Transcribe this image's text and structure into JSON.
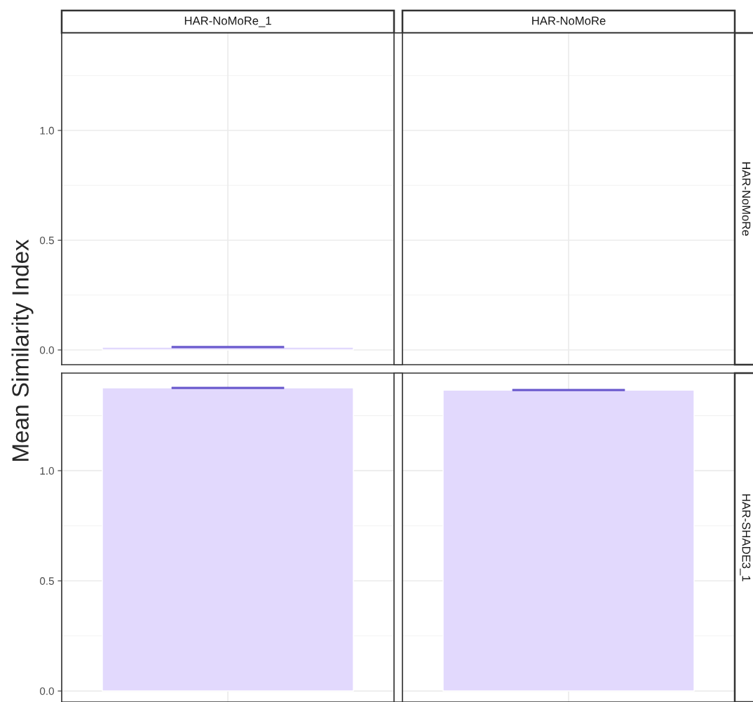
{
  "chart_data": [
    {
      "type": "bar",
      "ylabel": "Mean Similarity Index",
      "y2label": "HAR-NoMoRe",
      "categories": [
        "HAR-NoMoRe_1",
        "HAR-NoMoRe"
      ],
      "series": [
        {
          "color": "#e2d9fd",
          "values": [
            0.013,
            null
          ],
          "errors": [
            0,
            null
          ]
        }
      ],
      "ylim": [
        -0.067,
        1.444
      ],
      "yticks": [
        {
          "value": 0,
          "label": "0.0"
        },
        {
          "value": 0.5,
          "label": "0.5"
        },
        {
          "value": 1,
          "label": "1.0"
        }
      ],
      "grid": true
    },
    {
      "type": "bar",
      "y2label": "HAR-SHADE3_1",
      "categories": [
        null,
        null
      ],
      "series": [
        {
          "color": "#e2d9fd",
          "values": [
            1.376,
            1.366
          ],
          "errors": [
            0,
            0
          ]
        }
      ],
      "ylim": [
        -0.05,
        1.443
      ],
      "yticks": [
        {
          "value": 0,
          "label": "0.0"
        },
        {
          "value": 0.5,
          "label": "0.5"
        },
        {
          "value": 1,
          "label": "1.0"
        }
      ],
      "grid": true,
      "tick_labels": "y"
    }
  ]
}
